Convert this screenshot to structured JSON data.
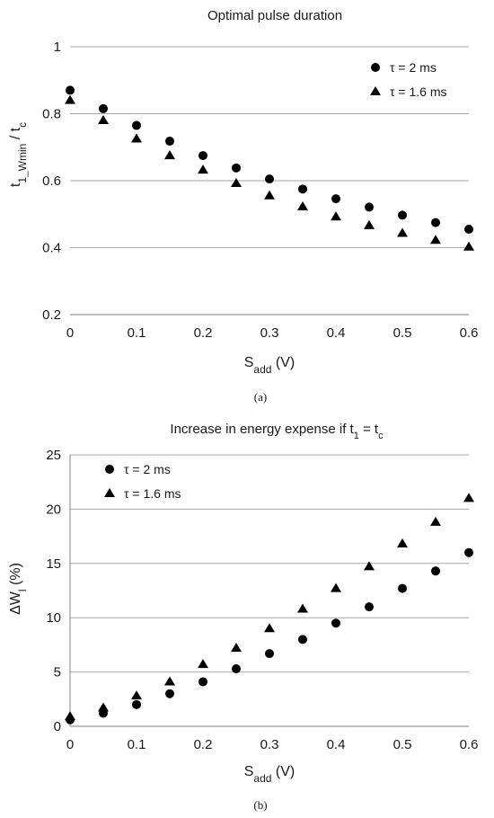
{
  "chart_data": [
    {
      "type": "scatter",
      "title": "Optimal pulse duration",
      "xlabel": {
        "main": "S",
        "sub": "add",
        "tail": " (V)"
      },
      "ylabel": {
        "p1": "t",
        "s1": "1_Wmin",
        "p2": " / t",
        "s2": "c"
      },
      "xlim": [
        0,
        0.6
      ],
      "ylim": [
        0.2,
        1
      ],
      "xticks": [
        "0",
        "0.1",
        "0.2",
        "0.3",
        "0.4",
        "0.5",
        "0.6"
      ],
      "yticks": [
        "0.2",
        "0.4",
        "0.6",
        "0.8",
        "1"
      ],
      "grid": true,
      "legend_position": "top-right",
      "x": [
        0,
        0.05,
        0.1,
        0.15,
        0.2,
        0.25,
        0.3,
        0.35,
        0.4,
        0.45,
        0.5,
        0.55,
        0.6
      ],
      "series": [
        {
          "name": "τ = 2 ms",
          "marker": "circle",
          "values": [
            0.87,
            0.815,
            0.765,
            0.718,
            0.675,
            0.638,
            0.605,
            0.575,
            0.546,
            0.521,
            0.497,
            0.475,
            0.455
          ]
        },
        {
          "name": "τ = 1.6 ms",
          "marker": "triangle",
          "values": [
            0.84,
            0.78,
            0.725,
            0.675,
            0.632,
            0.592,
            0.555,
            0.522,
            0.492,
            0.466,
            0.443,
            0.422,
            0.402
          ]
        }
      ],
      "caption": "(a)"
    },
    {
      "type": "scatter",
      "title": {
        "main": "Increase in energy expense if t",
        "s1": "1",
        "mid": " = t",
        "s2": "c"
      },
      "xlabel": {
        "main": "S",
        "sub": "add",
        "tail": " (V)"
      },
      "ylabel": {
        "p1": "ΔW",
        "s1": "l",
        "p2": " (%)",
        "s2": ""
      },
      "xlim": [
        0,
        0.6
      ],
      "ylim": [
        0,
        25
      ],
      "xticks": [
        "0",
        "0.1",
        "0.2",
        "0.3",
        "0.4",
        "0.5",
        "0.6"
      ],
      "yticks": [
        "0",
        "5",
        "10",
        "15",
        "20",
        "25"
      ],
      "grid": true,
      "legend_position": "top-left",
      "x": [
        0,
        0.05,
        0.1,
        0.15,
        0.2,
        0.25,
        0.3,
        0.35,
        0.4,
        0.45,
        0.5,
        0.55,
        0.6
      ],
      "series": [
        {
          "name": "τ = 2 ms",
          "marker": "circle",
          "values": [
            0.6,
            1.2,
            2.0,
            3.0,
            4.1,
            5.3,
            6.7,
            8.0,
            9.5,
            11.0,
            12.7,
            14.3,
            16.0
          ]
        },
        {
          "name": "τ = 1.6 ms",
          "marker": "triangle",
          "values": [
            0.9,
            1.7,
            2.8,
            4.1,
            5.7,
            7.2,
            9.0,
            10.8,
            12.7,
            14.7,
            16.8,
            18.8,
            21.0
          ]
        }
      ],
      "caption": "(b)"
    }
  ]
}
